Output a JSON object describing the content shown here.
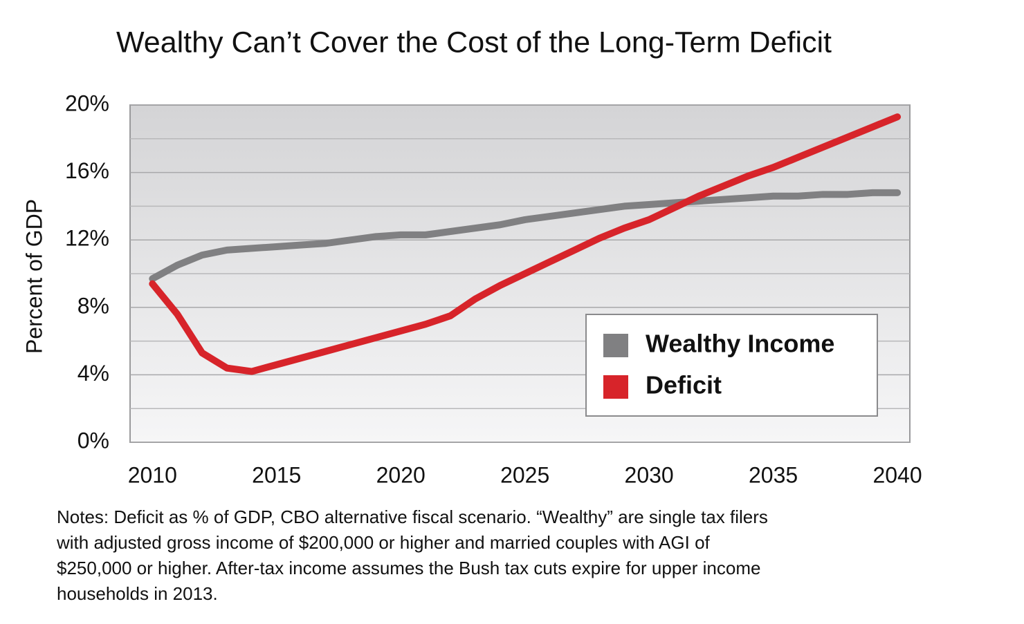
{
  "chart_data": {
    "type": "line",
    "title": "Wealthy Can’t Cover the Cost of the Long-Term Deficit",
    "y_label": "Percent of GDP",
    "x": [
      2010,
      2011,
      2012,
      2013,
      2014,
      2015,
      2016,
      2017,
      2018,
      2019,
      2020,
      2021,
      2022,
      2023,
      2024,
      2025,
      2026,
      2027,
      2028,
      2029,
      2030,
      2031,
      2032,
      2033,
      2034,
      2035,
      2036,
      2037,
      2038,
      2039,
      2040
    ],
    "series": [
      {
        "name": "Wealthy Income",
        "color": "#808082",
        "text_color": "#111111",
        "values": [
          9.7,
          10.5,
          11.1,
          11.4,
          11.5,
          11.6,
          11.7,
          11.8,
          12.0,
          12.2,
          12.3,
          12.3,
          12.5,
          12.7,
          12.9,
          13.2,
          13.4,
          13.6,
          13.8,
          14.0,
          14.1,
          14.2,
          14.3,
          14.4,
          14.5,
          14.6,
          14.6,
          14.7,
          14.7,
          14.8,
          14.8
        ]
      },
      {
        "name": "Deficit",
        "color": "#d7242a",
        "text_color": "#d7242a",
        "values": [
          9.4,
          7.6,
          5.3,
          4.4,
          4.2,
          4.6,
          5.0,
          5.4,
          5.8,
          6.2,
          6.6,
          7.0,
          7.5,
          8.5,
          9.3,
          10.0,
          10.7,
          11.4,
          12.1,
          12.7,
          13.2,
          13.9,
          14.6,
          15.2,
          15.8,
          16.3,
          16.9,
          17.5,
          18.1,
          18.7,
          19.3
        ]
      }
    ],
    "xlim": [
      2009.1,
      2040.5
    ],
    "xticks": [
      2010,
      2015,
      2020,
      2025,
      2030,
      2035,
      2040
    ],
    "ylim": [
      0,
      20
    ],
    "yticks": [
      {
        "value": 0,
        "label": "0%"
      },
      {
        "value": 4,
        "label": "4%"
      },
      {
        "value": 8,
        "label": "8%"
      },
      {
        "value": 12,
        "label": "12%"
      },
      {
        "value": 16,
        "label": "16%"
      },
      {
        "value": 20,
        "label": "20%"
      }
    ],
    "minor_yticks": [
      2,
      6,
      10,
      14,
      18
    ],
    "grid": true,
    "legend": "lower right",
    "notes": [
      "Notes: Deficit as % of GDP, CBO alternative fiscal scenario. “Wealthy” are single tax filers",
      "with adjusted gross income of $200,000 or higher and married couples with AGI of",
      "$250,000 or higher. After-tax income assumes the Bush tax cuts expire for upper income",
      "households in 2013."
    ]
  }
}
